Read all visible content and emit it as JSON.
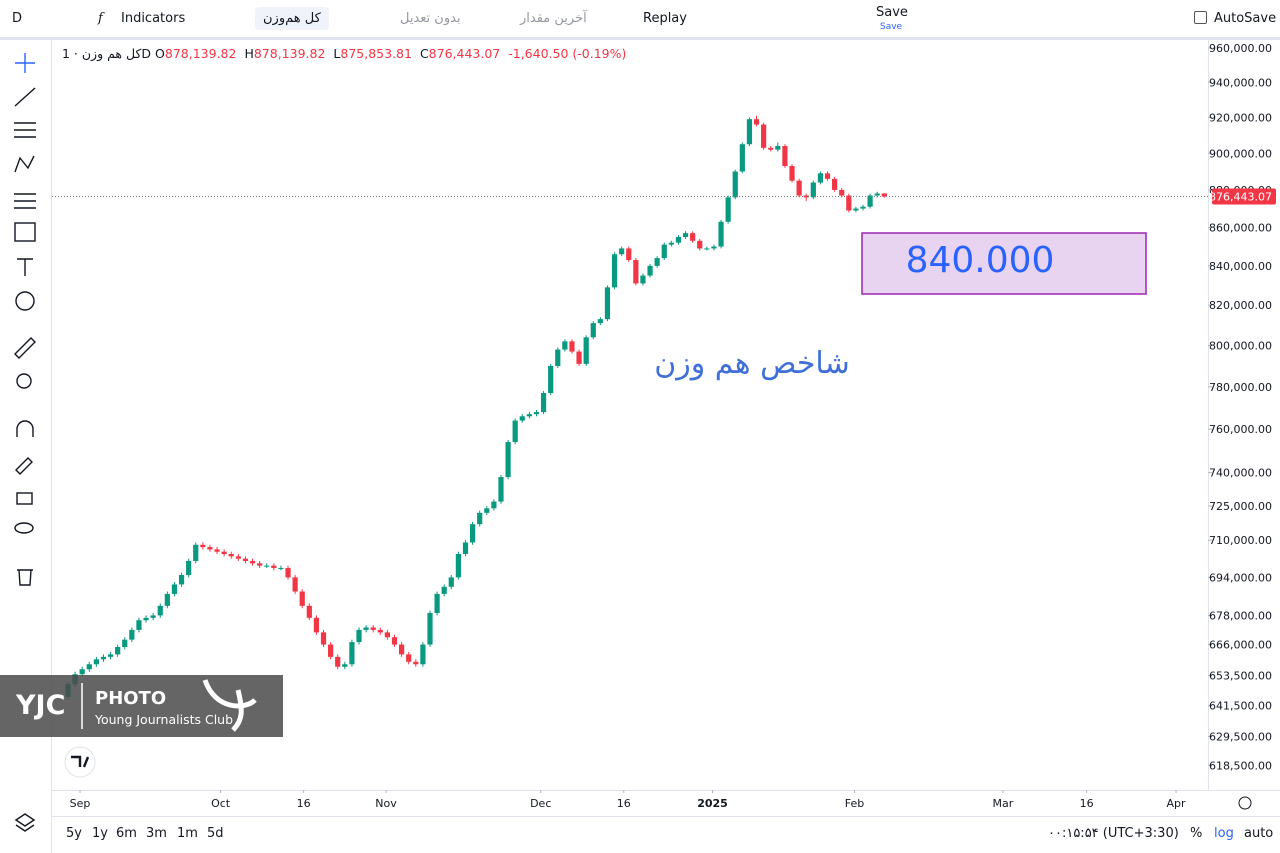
{
  "toolbar": {
    "symbol_letter": "D",
    "indicators": "Indicators",
    "symbol": "کل هم‌وزن",
    "adjustment": "بدون تعدیل",
    "price_type": "آخرین مقدار",
    "replay": "Replay",
    "save": "Save",
    "save_sub": "Save",
    "autosave": "AutoSave"
  },
  "legend": {
    "name": "کل هم وزن · 1D",
    "open_label": "O",
    "open": "878,139.82",
    "high_label": "H",
    "high": "878,139.82",
    "low_label": "L",
    "low": "875,853.81",
    "close_label": "C",
    "close": "876,443.07",
    "change": "-1,640.50 (-0.19%)"
  },
  "chart_data": {
    "type": "candlestick",
    "log_scale": true,
    "grid": false,
    "up_color": "#089981",
    "down_color": "#f23645",
    "price_label": "876,443.07",
    "annotations": [
      "840.000",
      "شاخص هم وزن"
    ],
    "xlim": [
      -2.25,
      160.6
    ],
    "xticks": [
      {
        "value": 1.7,
        "label": "Sep"
      },
      {
        "value": 21.5,
        "label": "Oct"
      },
      {
        "value": 33.2,
        "label": "16"
      },
      {
        "value": 44.8,
        "label": "Nov"
      },
      {
        "value": 66.6,
        "label": "Dec"
      },
      {
        "value": 78.3,
        "label": "16"
      },
      {
        "value": 90.8,
        "label": "2025"
      },
      {
        "value": 110.8,
        "label": "Feb"
      },
      {
        "value": 131.7,
        "label": "Mar"
      },
      {
        "value": 143.5,
        "label": "16"
      },
      {
        "value": 156.1,
        "label": "Apr"
      }
    ],
    "ylim": [
      609200,
      964700
    ],
    "yticks": [
      {
        "value": 960000,
        "label": "960,000.00"
      },
      {
        "value": 940000,
        "label": "940,000.00"
      },
      {
        "value": 920000,
        "label": "920,000.00"
      },
      {
        "value": 900000,
        "label": "900,000.00"
      },
      {
        "value": 880000,
        "label": "880,000.00"
      },
      {
        "value": 860000,
        "label": "860,000.00"
      },
      {
        "value": 840000,
        "label": "840,000.00"
      },
      {
        "value": 820000,
        "label": "820,000.00"
      },
      {
        "value": 800000,
        "label": "800,000.00"
      },
      {
        "value": 780000,
        "label": "780,000.00"
      },
      {
        "value": 760000,
        "label": "760,000.00"
      },
      {
        "value": 740000,
        "label": "740,000.00"
      },
      {
        "value": 725000,
        "label": "725,000.00"
      },
      {
        "value": 710000,
        "label": "710,000.00"
      },
      {
        "value": 694000,
        "label": "694,000.00"
      },
      {
        "value": 678000,
        "label": "678,000.00"
      },
      {
        "value": 666000,
        "label": "666,000.00"
      },
      {
        "value": 653500,
        "label": "653,500.00"
      },
      {
        "value": 641500,
        "label": "641,500.00"
      },
      {
        "value": 629500,
        "label": "629,500.00"
      },
      {
        "value": 618500,
        "label": "618,500.00"
      }
    ],
    "ohlc": [
      [
        645000,
        651000,
        644000,
        650000
      ],
      [
        650000,
        655000,
        649000,
        654000
      ],
      [
        654000,
        657000,
        653000,
        656000
      ],
      [
        656000,
        659000,
        655000,
        658000
      ],
      [
        658000,
        661000,
        657000,
        660000
      ],
      [
        660000,
        662000,
        659000,
        661000
      ],
      [
        661000,
        663000,
        660000,
        662000
      ],
      [
        662000,
        666000,
        661000,
        665000
      ],
      [
        665000,
        669000,
        664000,
        668000
      ],
      [
        668000,
        673000,
        667000,
        672000
      ],
      [
        672000,
        677000,
        671000,
        676000
      ],
      [
        676000,
        678000,
        675000,
        677000
      ],
      [
        677000,
        679000,
        676000,
        678000
      ],
      [
        678000,
        683000,
        677000,
        682000
      ],
      [
        682000,
        688000,
        681000,
        687000
      ],
      [
        687000,
        692000,
        686000,
        691000
      ],
      [
        691000,
        696000,
        690000,
        695000
      ],
      [
        695000,
        702000,
        694000,
        701000
      ],
      [
        701000,
        709000,
        700000,
        708000
      ],
      [
        708000,
        709000,
        706000,
        707000
      ],
      [
        707000,
        708000,
        705000,
        706000
      ],
      [
        706000,
        707000,
        704000,
        705000
      ],
      [
        705000,
        706000,
        703000,
        704000
      ],
      [
        704000,
        705000,
        702000,
        703000
      ],
      [
        703000,
        704000,
        701000,
        702000
      ],
      [
        702000,
        703000,
        700000,
        701000
      ],
      [
        701000,
        702000,
        699000,
        700000
      ],
      [
        700000,
        701000,
        698000,
        699000
      ],
      [
        699000,
        700000,
        698000,
        699000
      ],
      [
        699000,
        700000,
        697000,
        698000
      ],
      [
        698000,
        699000,
        697000,
        698000
      ],
      [
        698000,
        699000,
        693000,
        694000
      ],
      [
        694000,
        695000,
        687000,
        688000
      ],
      [
        688000,
        689000,
        681000,
        682000
      ],
      [
        682000,
        683000,
        676000,
        677000
      ],
      [
        677000,
        678000,
        670000,
        671000
      ],
      [
        671000,
        672000,
        665000,
        666000
      ],
      [
        666000,
        667000,
        660000,
        661000
      ],
      [
        661000,
        662000,
        656000,
        657000
      ],
      [
        657000,
        659000,
        656000,
        658000
      ],
      [
        658000,
        668000,
        657000,
        667000
      ],
      [
        667000,
        673000,
        666000,
        672000
      ],
      [
        672000,
        674000,
        671000,
        673000
      ],
      [
        673000,
        674000,
        671000,
        672000
      ],
      [
        672000,
        673000,
        670000,
        671000
      ],
      [
        671000,
        672000,
        668000,
        669000
      ],
      [
        669000,
        670000,
        665000,
        666000
      ],
      [
        666000,
        667000,
        661000,
        662000
      ],
      [
        662000,
        663000,
        658000,
        659000
      ],
      [
        659000,
        660000,
        657000,
        658000
      ],
      [
        658000,
        667000,
        657000,
        666000
      ],
      [
        666000,
        680000,
        665000,
        679000
      ],
      [
        679000,
        688000,
        678000,
        687000
      ],
      [
        687000,
        691000,
        686000,
        690000
      ],
      [
        690000,
        695000,
        689000,
        694000
      ],
      [
        694000,
        705000,
        693000,
        704000
      ],
      [
        704000,
        710000,
        703000,
        709000
      ],
      [
        709000,
        718000,
        708000,
        717000
      ],
      [
        717000,
        723000,
        716000,
        722000
      ],
      [
        722000,
        725000,
        721000,
        724000
      ],
      [
        724000,
        728000,
        723000,
        727000
      ],
      [
        727000,
        739000,
        726000,
        738000
      ],
      [
        738000,
        755000,
        737000,
        754000
      ],
      [
        754000,
        765000,
        753000,
        764000
      ],
      [
        764000,
        767000,
        763000,
        766000
      ],
      [
        766000,
        768000,
        765000,
        767000
      ],
      [
        767000,
        769000,
        766000,
        768000
      ],
      [
        768000,
        778000,
        767000,
        777000
      ],
      [
        777000,
        791000,
        776000,
        790000
      ],
      [
        790000,
        799000,
        789000,
        798000
      ],
      [
        798000,
        803000,
        797000,
        802000
      ],
      [
        802000,
        803000,
        796000,
        797000
      ],
      [
        797000,
        798000,
        790000,
        791000
      ],
      [
        791000,
        805000,
        790000,
        804000
      ],
      [
        804000,
        812000,
        803000,
        811000
      ],
      [
        811000,
        814000,
        810000,
        813000
      ],
      [
        813000,
        830000,
        812000,
        829000
      ],
      [
        829000,
        847000,
        828000,
        846000
      ],
      [
        846000,
        850000,
        845000,
        849000
      ],
      [
        849000,
        850000,
        842000,
        843000
      ],
      [
        843000,
        844000,
        830000,
        831000
      ],
      [
        831000,
        836000,
        830000,
        835000
      ],
      [
        835000,
        841000,
        834000,
        840000
      ],
      [
        840000,
        845000,
        839000,
        844000
      ],
      [
        844000,
        852000,
        843000,
        851000
      ],
      [
        851000,
        853000,
        850000,
        852000
      ],
      [
        852000,
        856000,
        851000,
        855000
      ],
      [
        855000,
        858000,
        854000,
        857000
      ],
      [
        857000,
        858000,
        852000,
        853000
      ],
      [
        853000,
        854000,
        848000,
        849000
      ],
      [
        849000,
        850000,
        848000,
        849000
      ],
      [
        849000,
        851000,
        848000,
        850000
      ],
      [
        850000,
        864000,
        849000,
        863000
      ],
      [
        863000,
        877000,
        862000,
        876000
      ],
      [
        876000,
        891000,
        875000,
        890000
      ],
      [
        890000,
        906000,
        889000,
        905000
      ],
      [
        905000,
        920000,
        904000,
        919000
      ],
      [
        919000,
        921000,
        915000,
        916000
      ],
      [
        916000,
        917000,
        902000,
        903000
      ],
      [
        903000,
        904000,
        901000,
        902000
      ],
      [
        902000,
        906000,
        901000,
        904000
      ],
      [
        904000,
        905000,
        892000,
        893000
      ],
      [
        893000,
        894000,
        884000,
        885000
      ],
      [
        885000,
        886000,
        876000,
        877000
      ],
      [
        877000,
        878000,
        874000,
        876000
      ],
      [
        876000,
        885000,
        875000,
        884000
      ],
      [
        884000,
        890000,
        883000,
        889000
      ],
      [
        889000,
        890000,
        885000,
        886000
      ],
      [
        886000,
        887000,
        879000,
        880000
      ],
      [
        880000,
        881000,
        876000,
        877000
      ],
      [
        877000,
        878000,
        868000,
        869000
      ],
      [
        869000,
        871000,
        868000,
        870000
      ],
      [
        870000,
        872000,
        869000,
        871000
      ],
      [
        871000,
        878000,
        870000,
        877000
      ],
      [
        877000,
        879000,
        876000,
        878084
      ],
      [
        878139.82,
        878139.82,
        875853.81,
        876443.07
      ]
    ]
  },
  "watermark": {
    "brand": "YJC",
    "photo": "PHOTO",
    "club": "Young Journalists Club"
  },
  "bottom_bar": {
    "ranges": [
      "5y",
      "1y",
      "6m",
      "3m",
      "1m",
      "5d"
    ],
    "clock": "۰۰:۱۵:۵۴ (UTC+3:30)",
    "percent": "%",
    "log": "log",
    "auto": "auto"
  }
}
